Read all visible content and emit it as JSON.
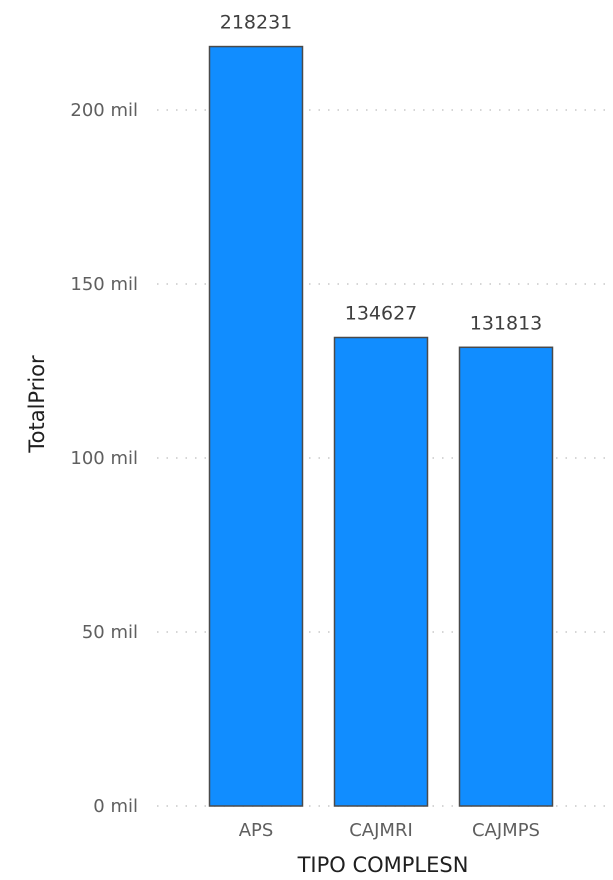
{
  "chart_data": {
    "type": "bar",
    "categories": [
      "APS",
      "CAJMRI",
      "CAJMPS"
    ],
    "values": [
      218231,
      134627,
      131813
    ],
    "data_labels": [
      "218231",
      "134627",
      "131813"
    ],
    "xlabel": "TIPO COMPLESN",
    "ylabel": "TotalPrior",
    "ylim": [
      0,
      200000
    ],
    "y_ticks": [
      0,
      50000,
      100000,
      150000,
      200000
    ],
    "y_tick_labels": [
      "0 mil",
      "50 mil",
      "100 mil",
      "150 mil",
      "200 mil"
    ],
    "grid": true,
    "bar_color": "#118DFF",
    "bar_outline_color": "#4a4a4a"
  }
}
